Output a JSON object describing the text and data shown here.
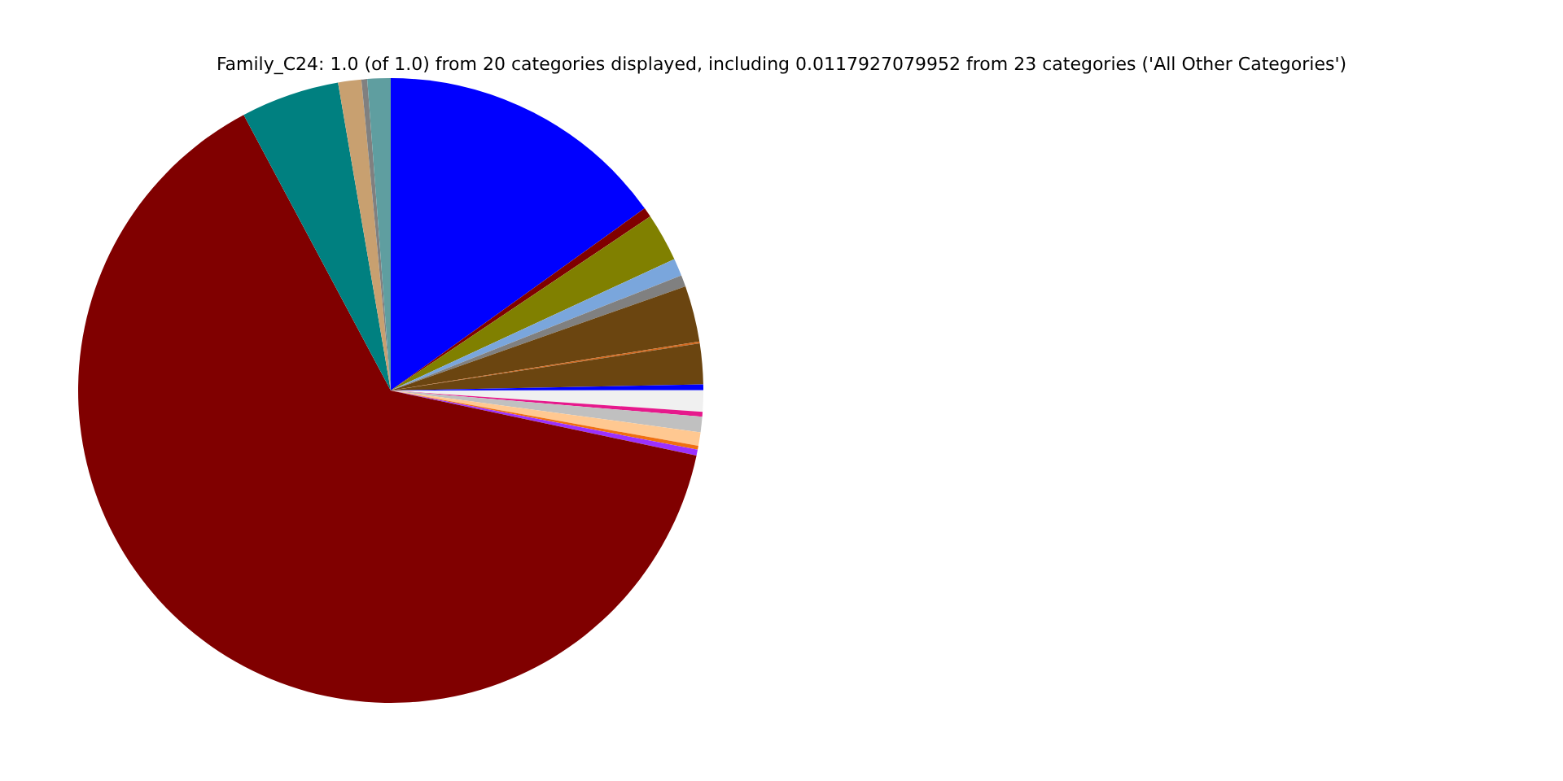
{
  "chart_data": {
    "type": "pie",
    "title": "Family_C24: 1.0 (of 1.0) from 20 categories displayed, including 0.0117927079952 from 23 categories ('All Other Categories')",
    "categories": [
      null,
      null,
      null,
      null,
      null,
      null,
      null,
      null,
      null,
      null,
      null,
      null,
      null,
      null,
      null,
      null,
      null,
      null,
      null,
      null
    ],
    "values": [
      15.1,
      0.5,
      2.5,
      0.9,
      0.6,
      2.9,
      0.1,
      2.1,
      0.3,
      1.1,
      0.25,
      0.8,
      0.7,
      0.2,
      0.3,
      63.9,
      5.1,
      1.2,
      0.3,
      1.2
    ],
    "colors": [
      "#0000ff",
      "#800000",
      "#808000",
      "#7aa6dc",
      "#808080",
      "#6b4510",
      "#d2691e",
      "#6b4510",
      "#0000ff",
      "#f0f0f0",
      "#e6198c",
      "#c0c0c0",
      "#ffc891",
      "#f07010",
      "#9b30ff",
      "#800000",
      "#008080",
      "#c8a070",
      "#808080",
      "#5f9ea0"
    ],
    "legend": false
  }
}
